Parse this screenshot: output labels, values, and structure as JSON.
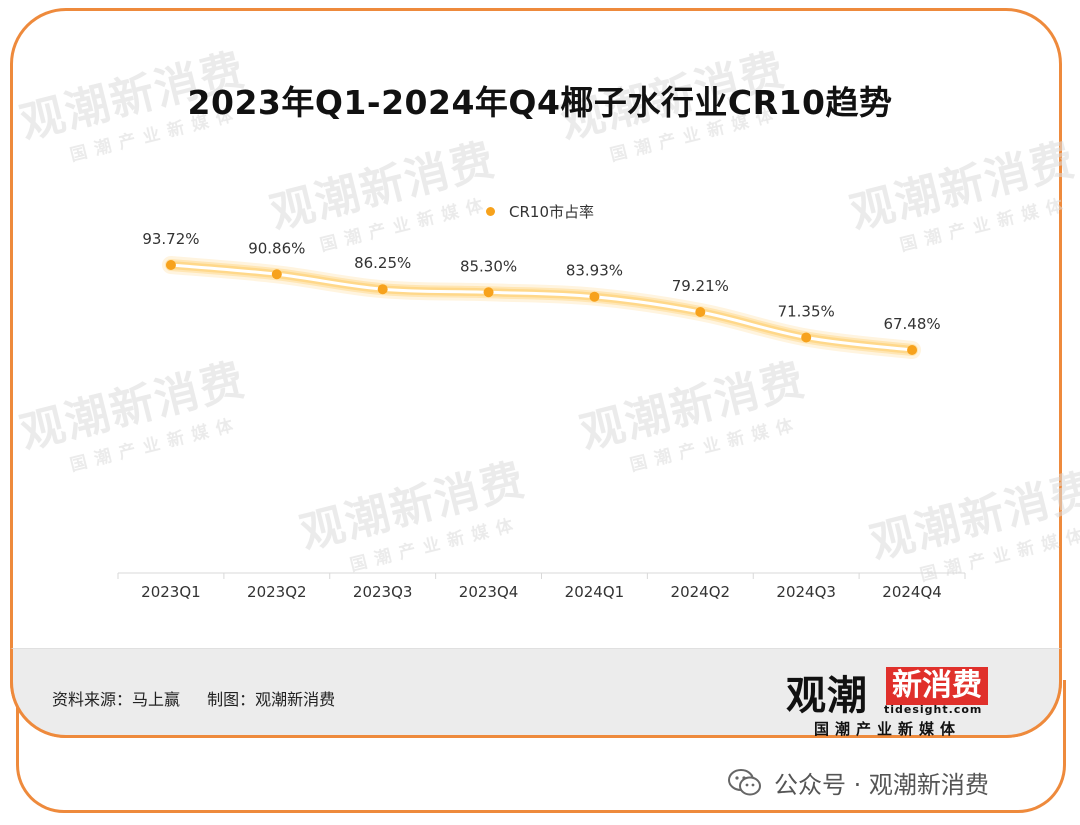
{
  "title": "2023年Q1-2024年Q4椰子水行业CR10趋势",
  "chart_data": {
    "type": "line",
    "categories": [
      "2023Q1",
      "2023Q2",
      "2023Q3",
      "2023Q4",
      "2024Q1",
      "2024Q2",
      "2024Q3",
      "2024Q4"
    ],
    "series": [
      {
        "name": "CR10市占率",
        "values": [
          93.72,
          90.86,
          86.25,
          85.3,
          83.93,
          79.21,
          71.35,
          67.48
        ]
      }
    ],
    "data_labels": [
      "93.72%",
      "90.86%",
      "86.25%",
      "85.30%",
      "83.93%",
      "79.21%",
      "71.35%",
      "67.48%"
    ],
    "legend_position": "top-center",
    "grid": false,
    "line_color": "#f7a21c",
    "glow_color": "#ffd580"
  },
  "footer": {
    "source": "资料来源：马上赢",
    "made_by": "制图：观潮新消费"
  },
  "brand": {
    "main": "观潮",
    "box": "新消费",
    "url": "tidesight.com",
    "slogan": "国潮产业新媒体"
  },
  "watermark": {
    "main": "观潮新消费",
    "sub": "国潮产业新媒体"
  },
  "wechat": {
    "icon": "wechat-icon",
    "text": "公众号 · 观潮新消费"
  },
  "colors": {
    "frame": "#ee8a3c",
    "footer_bg": "#ececec"
  }
}
